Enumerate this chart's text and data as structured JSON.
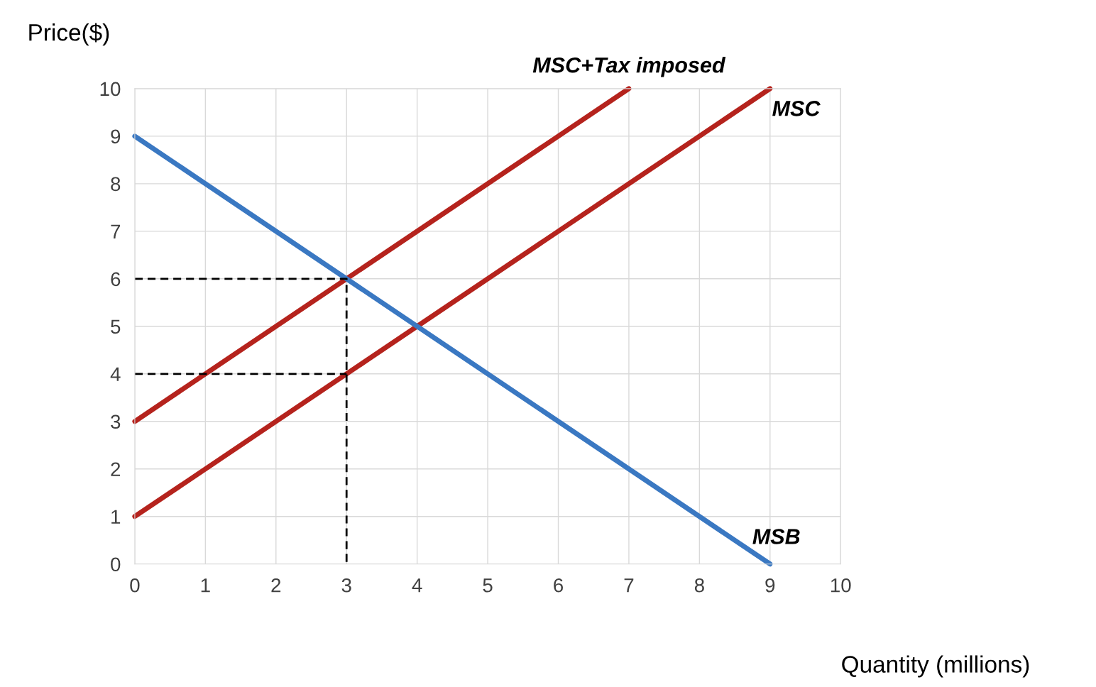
{
  "chart_data": {
    "type": "line",
    "xlabel": "Quantity (millions)",
    "ylabel": "Price($)",
    "xlim": [
      0,
      10
    ],
    "ylim": [
      0,
      10
    ],
    "xticks": [
      0,
      1,
      2,
      3,
      4,
      5,
      6,
      7,
      8,
      9,
      10
    ],
    "yticks": [
      0,
      1,
      2,
      3,
      4,
      5,
      6,
      7,
      8,
      9,
      10
    ],
    "grid": true,
    "series": [
      {
        "name": "MSC+Tax imposed",
        "color": "#b5231d",
        "x": [
          0,
          7
        ],
        "values": [
          3,
          10
        ]
      },
      {
        "name": "MSC",
        "color": "#b5231d",
        "x": [
          0,
          9
        ],
        "values": [
          1,
          10
        ]
      },
      {
        "name": "MSB",
        "color": "#3a78c2",
        "x": [
          0,
          9
        ],
        "values": [
          9,
          0
        ]
      },
      {
        "color": "#000000",
        "line_style": "dashed",
        "x": [
          0,
          3,
          3
        ],
        "values": [
          6,
          6,
          0
        ]
      },
      {
        "color": "#000000",
        "line_style": "dashed",
        "x": [
          0,
          3
        ],
        "values": [
          4,
          4
        ]
      }
    ]
  }
}
